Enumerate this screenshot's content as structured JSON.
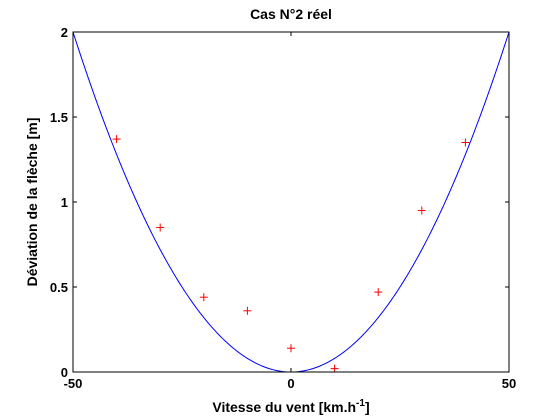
{
  "chart_data": {
    "type": "scatter",
    "title": "Cas N°2 réel",
    "xlabel": "Vitesse du vent [km.h",
    "xlabel_sup": "-1",
    "xlabel_end": "]",
    "ylabel": "Déviation de la flèche [m]",
    "xlim": [
      -50,
      50
    ],
    "ylim": [
      0,
      2
    ],
    "x_ticks": [
      -50,
      0,
      50
    ],
    "y_ticks": [
      0,
      0.5,
      1,
      1.5,
      2
    ],
    "x_tick_labels": [
      "-50",
      "0",
      "50"
    ],
    "y_tick_labels": [
      "0",
      "0.5",
      "1",
      "1.5",
      "2"
    ],
    "grid": false,
    "series": [
      {
        "kind": "markers",
        "marker": "+",
        "color": "#ff0000",
        "x": [
          -40,
          -30,
          -20,
          -10,
          0,
          10,
          20,
          30,
          40
        ],
        "y": [
          1.37,
          0.85,
          0.44,
          0.36,
          0.14,
          0.02,
          0.47,
          0.95,
          1.35
        ]
      },
      {
        "kind": "curve",
        "color": "#0000ff",
        "equation": "y = 0.0008 * x^2",
        "coefficient": 0.0008
      }
    ]
  }
}
